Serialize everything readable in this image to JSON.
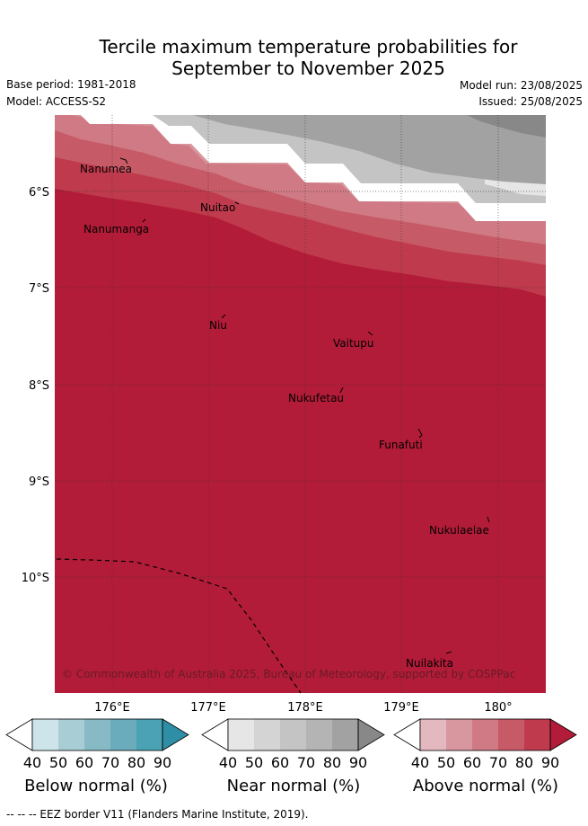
{
  "header": {
    "title_line1": "Tercile maximum temperature probabilities for",
    "title_line2": "September to November 2025",
    "base_period": "Base period: 1981-2018",
    "model": "Model: ACCESS-S2",
    "model_run": "Model run: 23/08/2025",
    "issued": "Issued: 25/08/2025"
  },
  "map": {
    "lon_labels": [
      "176°E",
      "177°E",
      "178°E",
      "179°E",
      "180°"
    ],
    "lat_labels": [
      "6°S",
      "7°S",
      "8°S",
      "9°S",
      "10°S"
    ],
    "islands": [
      {
        "name": "Nanumea"
      },
      {
        "name": "Nuitao"
      },
      {
        "name": "Nanumanga"
      },
      {
        "name": "Niu"
      },
      {
        "name": "Vaitupu"
      },
      {
        "name": "Nukufetau"
      },
      {
        "name": "Funafuti"
      },
      {
        "name": "Nukulaelae"
      },
      {
        "name": "Nuilakita"
      }
    ],
    "copyright": "© Commonwealth of Australia 2025, Bureau of Meteorology, supported by COSPPac"
  },
  "colorbars": [
    {
      "label": "Below normal (%)",
      "ticks": [
        "40",
        "50",
        "60",
        "70",
        "80",
        "90"
      ],
      "colors": [
        "#cde4ea",
        "#a9cdd4",
        "#88bac6",
        "#6aacbc",
        "#4aa2b4",
        "#2e8ea6"
      ]
    },
    {
      "label": "Near normal (%)",
      "ticks": [
        "40",
        "50",
        "60",
        "70",
        "80",
        "90"
      ],
      "colors": [
        "#e6e6e6",
        "#d4d4d4",
        "#c4c4c4",
        "#b4b4b4",
        "#a2a2a2",
        "#888888"
      ]
    },
    {
      "label": "Above normal (%)",
      "ticks": [
        "40",
        "50",
        "60",
        "70",
        "80",
        "90"
      ],
      "colors": [
        "#e3b8bf",
        "#d8969f",
        "#cf7a84",
        "#c65a66",
        "#bf3a4c",
        "#b31c38"
      ]
    }
  ],
  "footer": "--  --  -- EEZ border V11 (Flanders Marine Institute, 2019)."
}
